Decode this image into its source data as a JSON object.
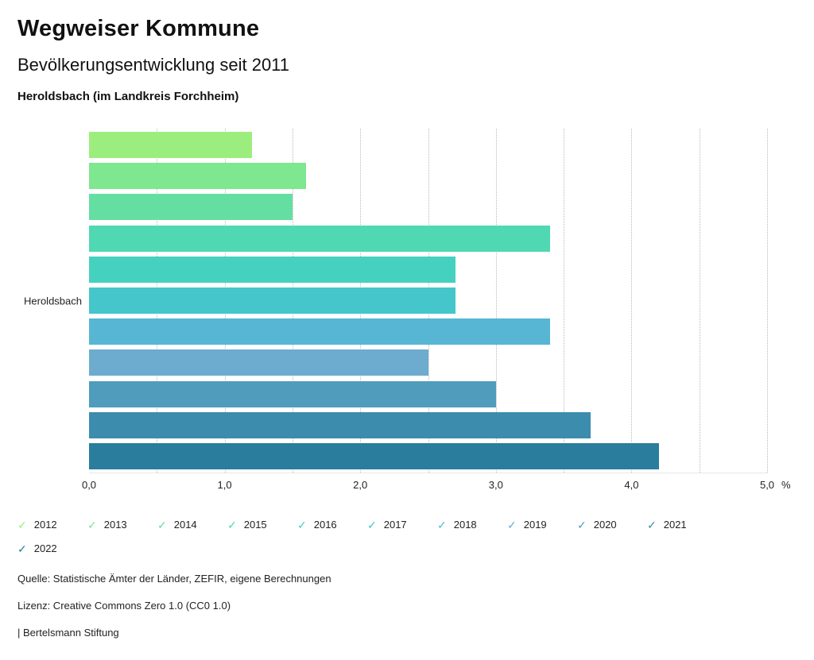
{
  "header": {
    "title": "Wegweiser Kommune",
    "subtitle": "Bevölkerungsentwicklung seit 2011",
    "region": "Heroldsbach (im Landkreis Forchheim)"
  },
  "chart_data": {
    "type": "bar",
    "orientation": "horizontal",
    "title": "Bevölkerungsentwicklung seit 2011",
    "group_label": "Heroldsbach",
    "categories": [
      "2012",
      "2013",
      "2014",
      "2015",
      "2016",
      "2017",
      "2018",
      "2019",
      "2020",
      "2021",
      "2022"
    ],
    "values": [
      1.2,
      1.6,
      1.5,
      3.4,
      2.7,
      2.7,
      3.4,
      2.5,
      3.0,
      3.7,
      4.2
    ],
    "colors": [
      "#9bee7d",
      "#7ee78f",
      "#64dfa1",
      "#4fd8b1",
      "#45d1bf",
      "#44c6cb",
      "#57b6d3",
      "#6daccf",
      "#4f9cbc",
      "#3c8cae",
      "#2a7d9d"
    ],
    "xlim": [
      0,
      5
    ],
    "grid_step": 0.5,
    "grid_style": "vertical-dotted",
    "x_ticks": [
      "0,0",
      "1,0",
      "2,0",
      "3,0",
      "4,0",
      "5,0"
    ],
    "x_unit": "%",
    "legend_position": "bottom"
  },
  "icons": {
    "check": "✓"
  },
  "footer": {
    "source": "Quelle: Statistische Ämter der Länder, ZEFIR, eigene Berechnungen",
    "license": "Lizenz: Creative Commons Zero 1.0 (CC0 1.0)",
    "attribution": "| Bertelsmann Stiftung"
  }
}
